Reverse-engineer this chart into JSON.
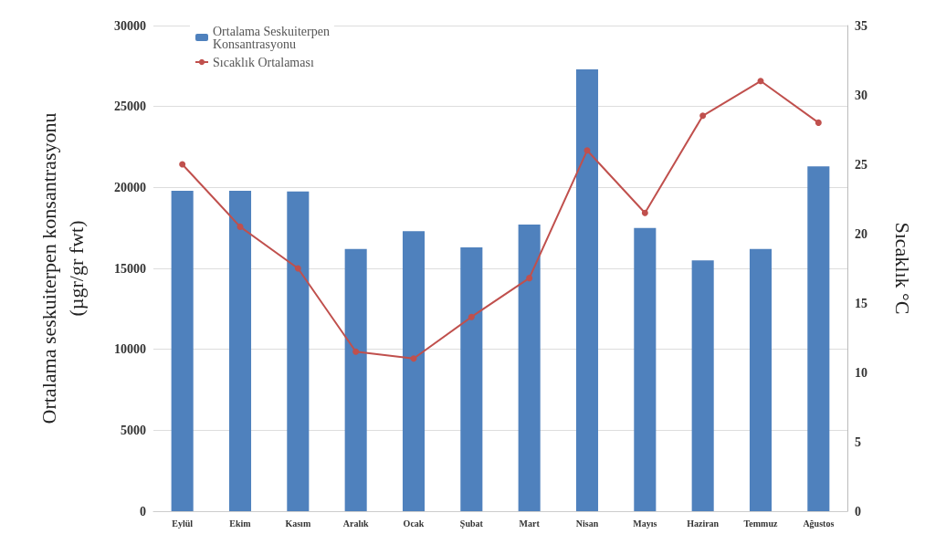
{
  "chart_data": {
    "type": "bar",
    "ylabel": "Ortalama seskuiterpen konsantrasyonu\n(µgr/gr fwt)",
    "y2label": "Sıcaklık °C",
    "categories": [
      "Eylül",
      "Ekim",
      "Kasım",
      "Aralık",
      "Ocak",
      "Şubat",
      "Mart",
      "Nisan",
      "Mayıs",
      "Haziran",
      "Temmuz",
      "Ağustos"
    ],
    "series": [
      {
        "name": "Ortalama Seskuiterpen\nKonsantrasyonu",
        "color": "#4f81bd",
        "values": [
          19800,
          19800,
          19750,
          16200,
          17300,
          16300,
          17700,
          27300,
          17500,
          15500,
          16200,
          21300
        ]
      },
      {
        "name": "Sıcaklık Ortalaması",
        "type": "line",
        "axis": "y2",
        "color": "#c0504d",
        "values": [
          25,
          20.5,
          17.5,
          11.5,
          11,
          14,
          16.8,
          26,
          21.5,
          28.5,
          31,
          28
        ]
      }
    ],
    "ylim": [
      0,
      30000
    ],
    "yticks": [
      0,
      5000,
      10000,
      15000,
      20000,
      25000,
      30000
    ],
    "y2lim": [
      0,
      35
    ],
    "y2ticks": [
      0,
      5,
      10,
      15,
      20,
      25,
      30,
      35
    ],
    "grid": "y",
    "legend": "top left",
    "marker": "circle"
  }
}
